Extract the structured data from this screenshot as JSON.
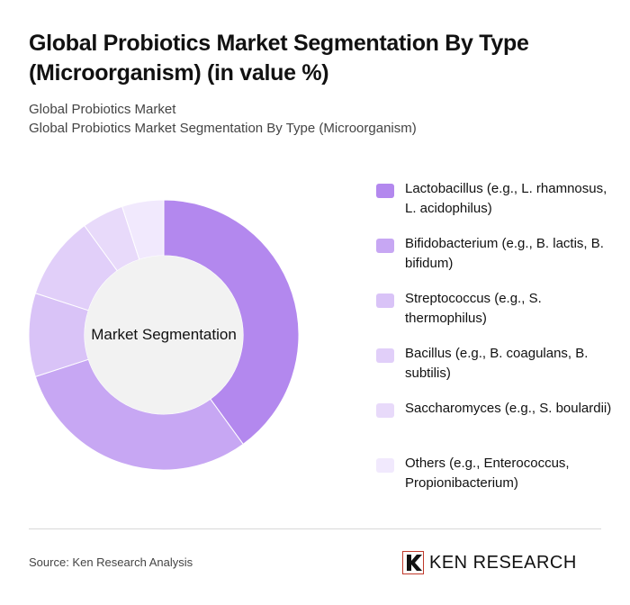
{
  "title": "Global Probiotics Market Segmentation By Type (Microorganism) (in value %)",
  "subtitle_1": "Global Probiotics Market",
  "subtitle_2": "Global Probiotics Market Segmentation By Type (Microorganism)",
  "source": "Source: Ken Research Analysis",
  "logo_text": "KEN RESEARCH",
  "chart_data": {
    "type": "pie",
    "style": "donut",
    "center_label": "Market Segmentation",
    "legend_position": "right",
    "categories": [
      "Lactobacillus (e.g., L. rhamnosus, L. acidophilus)",
      "Bifidobacterium (e.g., B. lactis, B. bifidum)",
      "Streptococcus (e.g., S. thermophilus)",
      "Bacillus (e.g., B. coagulans, B. subtilis)",
      "Saccharomyces (e.g., S. boulardii)",
      "Others (e.g., Enterococcus, Propionibacterium)"
    ],
    "values": [
      40,
      30,
      10,
      10,
      5,
      5
    ],
    "colors": [
      "#b388ee",
      "#c7a7f3",
      "#d9c3f7",
      "#e1cff9",
      "#e8dafa",
      "#f1e9fd"
    ]
  }
}
